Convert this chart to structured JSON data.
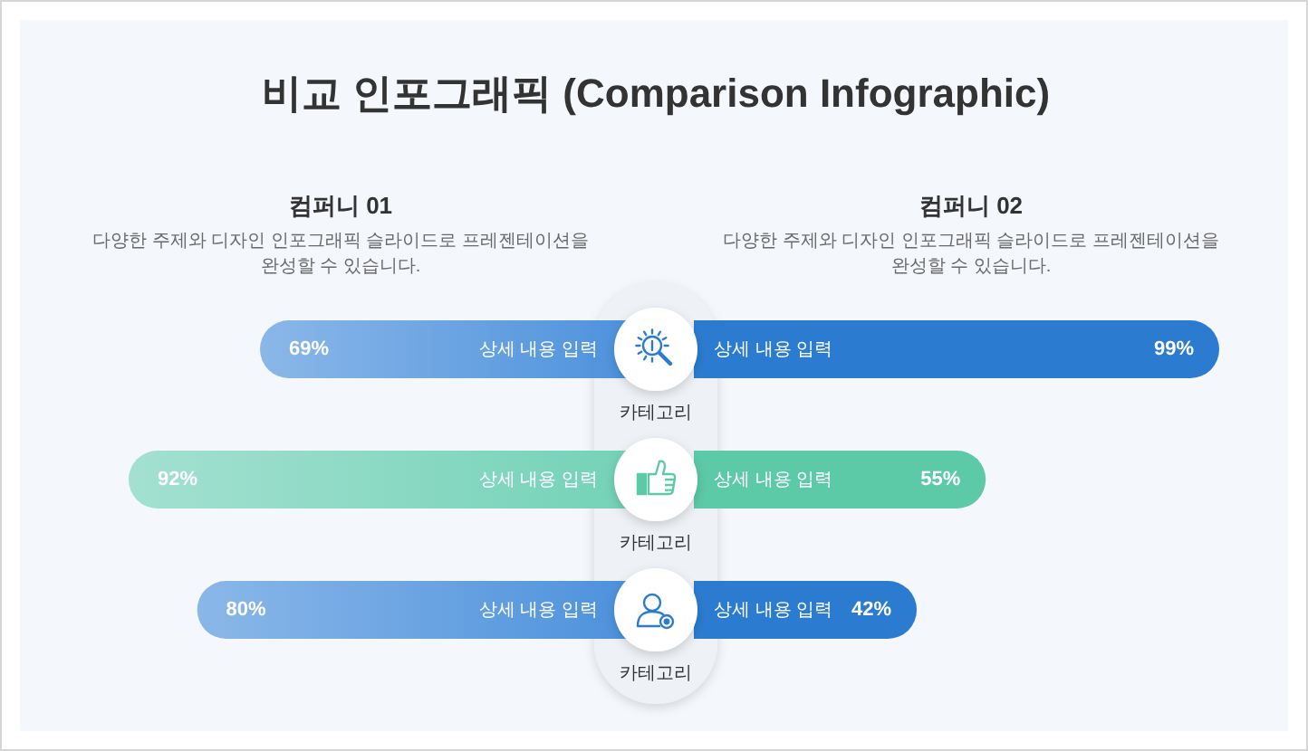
{
  "chart_data": [
    {
      "type": "bar",
      "title": "비교 인포그래픽 (Comparison Infographic)",
      "orientation": "horizontal",
      "tick_labels": "y",
      "categories": [
        "카테고리",
        "카테고리",
        "카테고리"
      ],
      "series": [
        {
          "name": "컴퍼니 01",
          "colors": [
            "#4a90dc",
            "#72d2b6",
            "#4a90dc"
          ],
          "values": [
            69,
            92,
            80
          ],
          "value_labels": [
            "69%",
            "92%",
            "80%"
          ]
        }
      ],
      "annotations": [
        "다양한 주제와 디자인 인포그래픽 슬라이드로 프레젠테이션을 완성할 수 있습니다.",
        "상세 내용 입력",
        "상세 내용 입력",
        "상세 내용 입력"
      ]
    },
    {
      "type": "bar",
      "orientation": "horizontal",
      "tick_labels": "y",
      "categories": [
        null,
        null,
        null
      ],
      "series": [
        {
          "name": "컴퍼니 02",
          "colors": [
            "#2b7cd0",
            "#5cc9a7",
            "#2b7cd0"
          ],
          "values": [
            99,
            55,
            42
          ],
          "value_labels": [
            "99%",
            "55%",
            "42%"
          ]
        }
      ],
      "annotations": [
        "다양한 주제와 디자인 인포그래픽 슬라이드로 프레젠테이션을 완성할 수 있습니다.",
        "상세 내용 입력",
        "상세 내용 입력",
        "상세 내용 입력"
      ]
    }
  ]
}
